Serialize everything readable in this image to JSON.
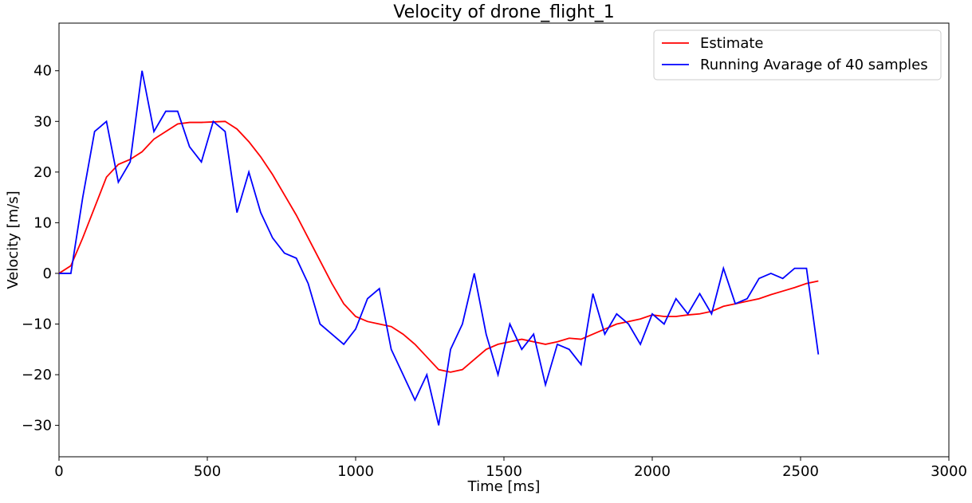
{
  "chart_data": {
    "type": "line",
    "title": "Velocity of drone_flight_1",
    "x_label": "Time [ms]",
    "y_label": "Velocity [m/s]",
    "x": [
      0,
      40,
      80,
      120,
      160,
      200,
      240,
      280,
      320,
      360,
      400,
      440,
      480,
      520,
      560,
      600,
      640,
      680,
      720,
      760,
      800,
      840,
      880,
      920,
      960,
      1000,
      1040,
      1080,
      1120,
      1160,
      1200,
      1240,
      1280,
      1320,
      1360,
      1400,
      1440,
      1480,
      1520,
      1560,
      1600,
      1640,
      1680,
      1720,
      1760,
      1800,
      1840,
      1880,
      1920,
      1960,
      2000,
      2040,
      2080,
      2120,
      2160,
      2200,
      2240,
      2280,
      2320,
      2360,
      2400,
      2440,
      2480,
      2520,
      2560
    ],
    "series": [
      {
        "name": "Estimate",
        "color": "#ff0000",
        "values": [
          0,
          1.5,
          7,
          13,
          19,
          21.5,
          22.5,
          24,
          26.5,
          28,
          29.5,
          29.8,
          29.8,
          29.9,
          30,
          28.5,
          26,
          23,
          19.5,
          15.5,
          11.5,
          7,
          2.5,
          -2,
          -6,
          -8.5,
          -9.5,
          -10,
          -10.5,
          -12,
          -14,
          -16.5,
          -19,
          -19.5,
          -19,
          -17,
          -15,
          -14,
          -13.5,
          -13,
          -13.5,
          -14,
          -13.5,
          -12.8,
          -13,
          -12,
          -11,
          -10,
          -9.5,
          -9,
          -8.2,
          -8.5,
          -8.5,
          -8.2,
          -8,
          -7.5,
          -6.5,
          -6,
          -5.5,
          -5,
          -4.2,
          -3.5,
          -2.8,
          -2,
          -1.5
        ]
      },
      {
        "name": "Running Avarage of 40 samples",
        "color": "#0000ff",
        "values": [
          0,
          0,
          15,
          28,
          30,
          18,
          22,
          40,
          28,
          32,
          32,
          25,
          22,
          30,
          28,
          12,
          20,
          12,
          7,
          4,
          3,
          -2,
          -10,
          -12,
          -14,
          -11,
          -5,
          -3,
          -15,
          -20,
          -25,
          -20,
          -30,
          -15,
          -10,
          0,
          -12,
          -20,
          -10,
          -15,
          -12,
          -22,
          -14,
          -15,
          -18,
          -4,
          -12,
          -8,
          -10,
          -14,
          -8,
          -10,
          -5,
          -8,
          -4,
          -8,
          1,
          -6,
          -5,
          -1,
          0,
          -1,
          1,
          1,
          -16
        ]
      }
    ],
    "xlim": [
      0,
      3000
    ],
    "xticks": [
      0,
      500,
      1000,
      1500,
      2000,
      2500,
      3000
    ],
    "ylim": [
      -36.2,
      49.4
    ],
    "yticks": [
      {
        "value": -30,
        "label": "−30"
      },
      {
        "value": -20,
        "label": "−20"
      },
      {
        "value": -10,
        "label": "−10"
      },
      0,
      10,
      20,
      30,
      40
    ],
    "legend": "upper right",
    "grid": false
  }
}
